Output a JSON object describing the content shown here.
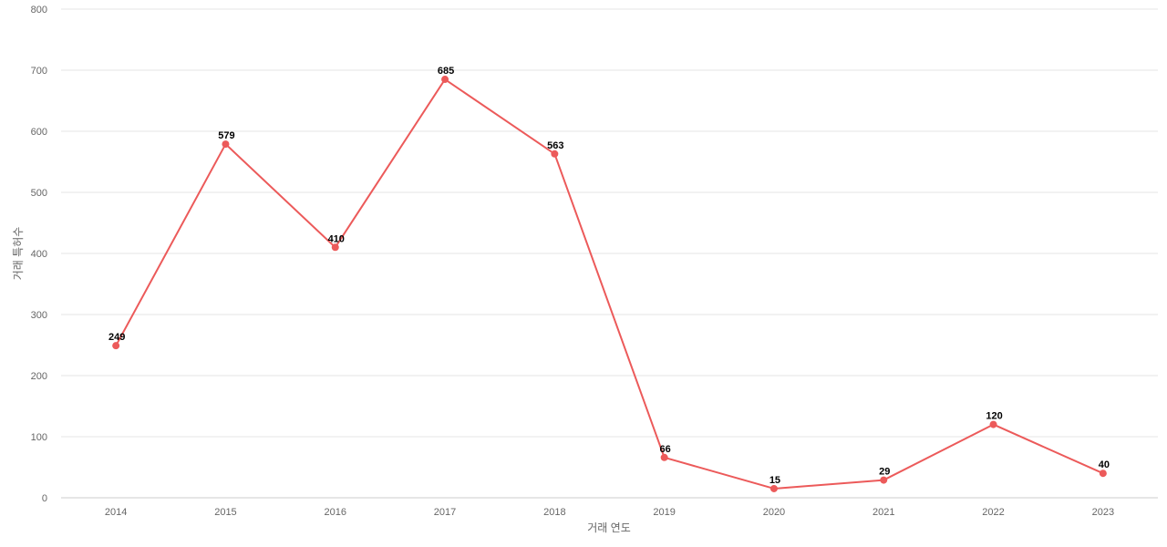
{
  "chart_data": {
    "type": "line",
    "title": "",
    "xlabel": "거래 연도",
    "ylabel": "거래 특허수",
    "categories": [
      "2014",
      "2015",
      "2016",
      "2017",
      "2018",
      "2019",
      "2020",
      "2021",
      "2022",
      "2023"
    ],
    "series": [
      {
        "values": [
          249,
          579,
          410,
          685,
          563,
          66,
          15,
          29,
          120,
          40
        ],
        "color": "#ec5a5a"
      }
    ],
    "ylim": [
      0,
      800
    ],
    "yticks": [
      0,
      100,
      200,
      300,
      400,
      500,
      600,
      700,
      800
    ],
    "grid": true,
    "legend": "none",
    "data_labels": true
  }
}
